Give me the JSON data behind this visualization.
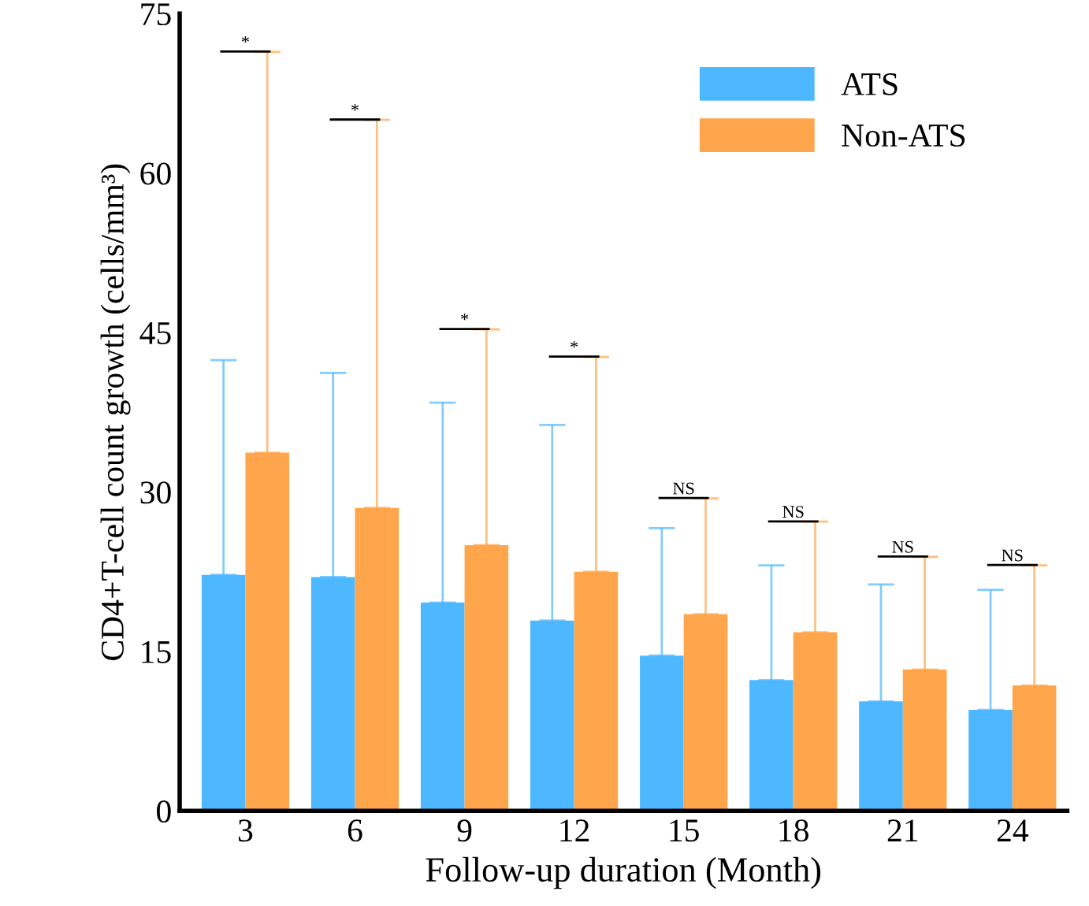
{
  "chart_data": {
    "type": "bar",
    "xlabel": "Follow-up duration (Month)",
    "ylabel": "CD4+T-cell count growth (cells/mm³)",
    "categories": [
      "3",
      "6",
      "9",
      "12",
      "15",
      "18",
      "21",
      "24"
    ],
    "series": [
      {
        "name": "ATS",
        "color": "#4db8ff",
        "values": [
          22.2,
          22.0,
          19.6,
          17.9,
          14.6,
          12.3,
          10.3,
          9.5
        ],
        "errors": [
          [
            22.2,
            42.4
          ],
          [
            22.0,
            41.2
          ],
          [
            19.6,
            38.4
          ],
          [
            17.9,
            36.3
          ],
          [
            14.6,
            26.6
          ],
          [
            12.3,
            23.1
          ],
          [
            10.3,
            21.3
          ],
          [
            9.5,
            20.8
          ]
        ]
      },
      {
        "name": "Non-ATS",
        "color": "#ffa54c",
        "values": [
          33.7,
          28.5,
          25.0,
          22.5,
          18.5,
          16.8,
          13.3,
          11.8
        ],
        "errors": [
          [
            33.7,
            71.4
          ],
          [
            28.5,
            65.0
          ],
          [
            25.0,
            45.3
          ],
          [
            22.5,
            42.7
          ],
          [
            18.5,
            29.4
          ],
          [
            16.8,
            27.2
          ],
          [
            13.3,
            23.9
          ],
          [
            11.8,
            23.1
          ]
        ]
      }
    ],
    "ylim": [
      0,
      75
    ],
    "yticks": [
      0,
      15,
      30,
      45,
      60,
      75
    ],
    "grid": false,
    "legend": "top right",
    "annotations": [
      "*",
      "*",
      "*",
      "*",
      "NS",
      "NS",
      "NS",
      "NS"
    ]
  }
}
